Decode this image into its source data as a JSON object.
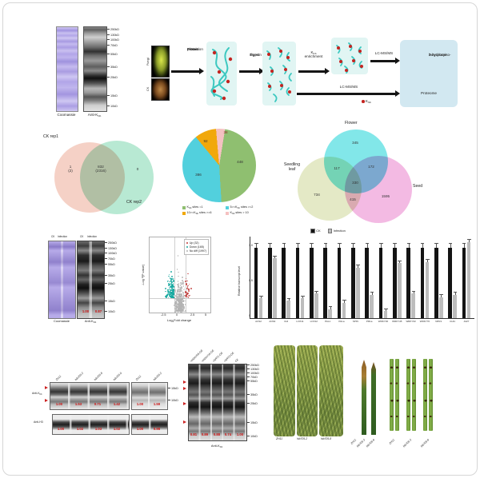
{
  "colors": {
    "accent_red": "#cc1111",
    "teal_protein": "#3cc8c0",
    "khib_dot": "#c42420",
    "workflow_box": "#e1f5f3",
    "output_box": "#d2e8f1",
    "venn2_rep1": "#f3c7b9",
    "venn2_rep2": "#a9e4c9",
    "venn3_flower": "#58dfe2",
    "venn3_leaf": "#dde4b8",
    "venn3_seed": "#efa0d8",
    "volcano_up": "#c13a38",
    "volcano_down": "#17a79f",
    "volcano_nodiff": "#b3b3b3",
    "bar_ck": "#141414",
    "bar_infection": "#bdbdbd"
  },
  "panel_a": {
    "markers": [
      "250kD",
      "130kD",
      "100kD",
      "70kD",
      "55kD",
      "35kD",
      "25kD",
      "15kD",
      "10kD"
    ],
    "gel1_label": "Coomassie",
    "gel2_base": "Anti-K",
    "gel2_sub": "hib"
  },
  "workflow": {
    "sample_top": "Fungi",
    "sample_bottom": "CK",
    "step1_lines": [
      "Flower",
      "protein",
      "extraction"
    ],
    "step2_lines": [
      "Trypsin",
      "digest"
    ],
    "step3_pre": "K",
    "step3_sub": "hib",
    "step3_line2": "enrichment",
    "lcms_top": "LC-MS/MS",
    "lcms_bottom": "LC-MS/MS",
    "output_top_lines": [
      "2-hydroxyiso-",
      "butyrylome"
    ],
    "output_bottom": "Proteome",
    "legend_pre": "K",
    "legend_sub": "hib"
  },
  "chart_data": [
    {
      "type": "venn",
      "sets": [
        "CK rep1",
        "CK rep2"
      ],
      "regions": {
        "rep1_only": "1",
        "rep1_only_b": "(2)",
        "overlap": "832",
        "overlap_b": "(2316)",
        "rep2_only": "0"
      }
    },
    {
      "type": "pie",
      "values": [
        448,
        386,
        92,
        38
      ],
      "value_labels": [
        "448",
        "386",
        "92",
        "38"
      ],
      "labels": [
        "Khib sites =1",
        "5>=Khib sites >=2",
        "10>=Khib sites >=6",
        "Khib sites > 10"
      ],
      "legend_parts": [
        {
          "pre": "K",
          "sub": "hib",
          "rest": " sites =1"
        },
        {
          "pre": "5>=K",
          "sub": "hib",
          "rest": " sites >=2"
        },
        {
          "pre": "10>=K",
          "sub": "hib",
          "rest": " sites >=6"
        },
        {
          "pre": "K",
          "sub": "hib",
          "rest": " sites > 10"
        }
      ],
      "colors": [
        "#8fbf70",
        "#52d0dd",
        "#f1a80b",
        "#f5c1c1"
      ],
      "draw_order": [
        3,
        0,
        1,
        2
      ],
      "start_angle": -5
    },
    {
      "type": "venn",
      "sets": [
        "Flower",
        "Seedling leaf",
        "Seed"
      ],
      "set_label_lines": {
        "top": "Flower",
        "left1": "Seedling",
        "left2": "leaf",
        "right": "Seed"
      },
      "regions": {
        "flower_only": "345",
        "flower_leaf": "117",
        "flower_seed": "172",
        "center": "330",
        "leaf_only": "734",
        "leaf_seed": "415",
        "seed_only": "1595"
      }
    },
    {
      "type": "scatter",
      "series": [
        {
          "name": "Up (32)",
          "count": 32,
          "color": "#c13a38"
        },
        {
          "name": "Down (165)",
          "count": 165,
          "color": "#17a79f"
        },
        {
          "name": "No diff (1997)",
          "count": 1997,
          "color": "#b3b3b3"
        }
      ],
      "xlabel_pre": "Log",
      "xlabel_sub": "2",
      "xlabel_rest": "Fold change",
      "ylabel_pre": "-Log",
      "ylabel_sub": "10",
      "ylabel_rest": "(P value)",
      "xticks": [
        "-2.5",
        "0",
        "2.5",
        "5"
      ],
      "xlim": [
        -5.5,
        5.5
      ],
      "ylim": [
        0,
        7
      ]
    },
    {
      "type": "bar",
      "ylabel": "Relative transcript level",
      "yticks": [
        "1.0",
        "0.5",
        "0"
      ],
      "ylim": [
        0,
        1.15
      ],
      "categories": [
        "ACS2",
        "AOS4",
        "CHI",
        "LOX11",
        "LOX12",
        "PAL1",
        "PALa",
        "SPIN",
        "PR1a",
        "WRKY30",
        "WRKY45",
        "WRKY62",
        "WRKY70",
        "NPR1",
        "CHI1",
        "JAZ7"
      ],
      "series": [
        {
          "name": "CK",
          "color": "#141414",
          "values": [
            1,
            1,
            1,
            1,
            1,
            1,
            1,
            1,
            1,
            1,
            1,
            1,
            1,
            1,
            1,
            1
          ]
        },
        {
          "name": "Infection",
          "color": "#bdbdbd",
          "values": [
            0.28,
            0.85,
            0.25,
            0.28,
            0.35,
            0.13,
            0.22,
            0.72,
            0.33,
            0.1,
            0.78,
            0.35,
            0.8,
            0.3,
            0.33,
            1.08
          ]
        }
      ]
    }
  ],
  "panel_f": {
    "lane_headers": [
      "CK",
      "Infection",
      "CK",
      "Infection"
    ],
    "markers": [
      "250kD",
      "130kD",
      "100kD",
      "70kD",
      "55kD",
      "35kD",
      "25kD",
      "15kD",
      "10kD"
    ],
    "ratios": [
      "1.00",
      "0.87"
    ],
    "gel1_label": "Coomassie",
    "gel2_base": "Anti-K",
    "gel2_sub": "hib"
  },
  "panel_i": {
    "left_lanes": [
      "ZH11",
      "hib705-2",
      "hib705-8",
      "hib705-9"
    ],
    "right_lanes": [
      "ZH11",
      "hib705-2"
    ],
    "khib_label_base": "Anti-K",
    "khib_label_sub": "hib",
    "h3_label": "Anti-H3",
    "markers": [
      "15kD",
      "10kD"
    ],
    "khib_left_ratios": [
      "1.00",
      "1.53",
      "0.71",
      "1.42"
    ],
    "khib_right_ratios": [
      "1.00",
      "1.59"
    ],
    "h3_left_ratios": [
      "1.00",
      "1.02",
      "1.03",
      "1.02"
    ],
    "h3_right_ratios": [
      "1.00",
      "0.98"
    ]
  },
  "panel_j": {
    "lanes": [
      "+HDA705-OE",
      "+HDA716-OE",
      "+SRT1-OE",
      "+SRT2-OE",
      "CK"
    ],
    "markers": [
      "250kD",
      "130kD",
      "100kD",
      "70kD",
      "55kD",
      "35kD",
      "25kD",
      "15kD",
      "10kD"
    ],
    "ratios": [
      "0.81",
      "0.89",
      "0.88",
      "0.74",
      "1.00"
    ],
    "label_base": "Anti-K",
    "label_sub": "hib"
  },
  "panel_k": {
    "panicle_labels": [
      "ZH11",
      "hib705-2",
      "hib705-8"
    ],
    "leaf_labels": [
      "ZH11",
      "hib705-2",
      "hib705-8"
    ],
    "segment_labels": [
      "ZH11",
      "hib705-2",
      "hib705-8"
    ]
  }
}
